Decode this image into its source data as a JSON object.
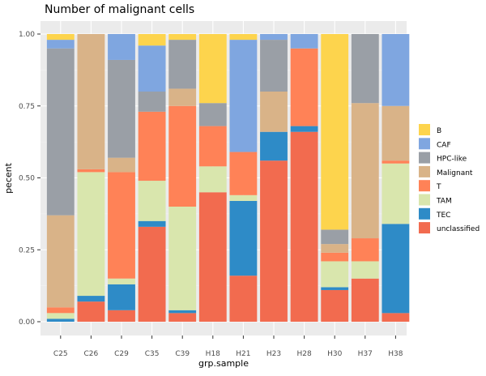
{
  "chart_data": {
    "type": "bar",
    "stacked": true,
    "title": "Number of malignant cells",
    "xlabel": "grp.sample",
    "ylabel": "pecent",
    "ylim": [
      0,
      1
    ],
    "y_ticks": [
      "0.00",
      "0.25",
      "0.50",
      "0.75",
      "1.00"
    ],
    "y_tick_values": [
      0,
      0.25,
      0.5,
      0.75,
      1.0
    ],
    "grid": true,
    "legend_position": "right",
    "categories": [
      "C25",
      "C26",
      "C29",
      "C35",
      "C39",
      "H18",
      "H21",
      "H23",
      "H28",
      "H30",
      "H37",
      "H38"
    ],
    "series": [
      {
        "name": "unclassified",
        "color": "#F26B4F",
        "values": [
          0.0,
          0.07,
          0.04,
          0.33,
          0.03,
          0.45,
          0.16,
          0.56,
          0.66,
          0.11,
          0.15,
          0.03
        ]
      },
      {
        "name": "TEC",
        "color": "#2E8BC7",
        "values": [
          0.01,
          0.02,
          0.09,
          0.02,
          0.01,
          0.0,
          0.26,
          0.1,
          0.02,
          0.01,
          0.0,
          0.31
        ]
      },
      {
        "name": "TAM",
        "color": "#D9E6AD",
        "values": [
          0.02,
          0.43,
          0.02,
          0.14,
          0.36,
          0.09,
          0.02,
          0.0,
          0.0,
          0.09,
          0.06,
          0.21
        ]
      },
      {
        "name": "T",
        "color": "#FF8257",
        "values": [
          0.02,
          0.01,
          0.37,
          0.24,
          0.35,
          0.14,
          0.15,
          0.0,
          0.27,
          0.03,
          0.08,
          0.01
        ]
      },
      {
        "name": "Malignant",
        "color": "#D9B388",
        "values": [
          0.32,
          0.47,
          0.05,
          0.0,
          0.06,
          0.0,
          0.0,
          0.14,
          0.0,
          0.03,
          0.47,
          0.19
        ]
      },
      {
        "name": "HPC-like",
        "color": "#9A9FA6",
        "values": [
          0.58,
          0.0,
          0.34,
          0.07,
          0.17,
          0.08,
          0.0,
          0.18,
          0.0,
          0.05,
          0.24,
          0.0
        ]
      },
      {
        "name": "CAF",
        "color": "#7FA6E0",
        "values": [
          0.03,
          0.0,
          0.09,
          0.16,
          0.0,
          0.0,
          0.39,
          0.02,
          0.05,
          0.0,
          0.0,
          0.25
        ]
      },
      {
        "name": "B",
        "color": "#FDD44D",
        "values": [
          0.02,
          0.0,
          0.0,
          0.04,
          0.02,
          0.24,
          0.02,
          0.0,
          0.0,
          0.68,
          0.0,
          0.0
        ]
      }
    ],
    "legend_order": [
      "B",
      "CAF",
      "HPC-like",
      "Malignant",
      "T",
      "TAM",
      "TEC",
      "unclassified"
    ]
  }
}
